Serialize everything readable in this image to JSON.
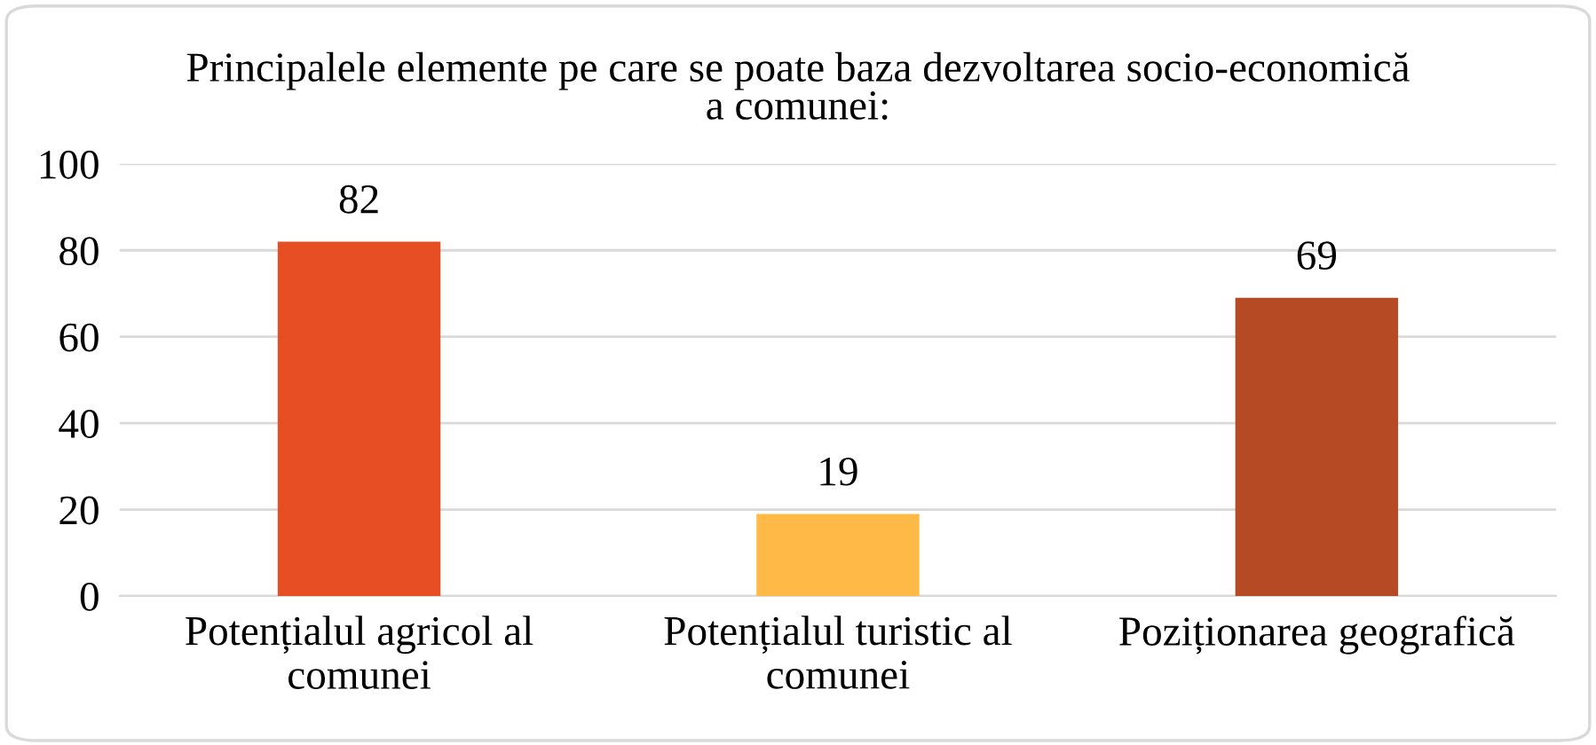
{
  "chart_data": {
    "type": "bar",
    "title": "Principalele elemente pe care se poate baza dezvoltarea socio-economică a comunei:",
    "categories": [
      "Potențialul agricol al comunei",
      "Potențialul turistic al comunei",
      "Poziționarea geografică"
    ],
    "values": [
      82,
      19,
      69
    ],
    "colors": [
      "#e84e23",
      "#ffb946",
      "#b54a25"
    ],
    "ylim": [
      0,
      100
    ],
    "yticks": [
      0,
      20,
      40,
      60,
      80,
      100
    ],
    "grid": "y",
    "data_labels": true,
    "legend": false
  }
}
